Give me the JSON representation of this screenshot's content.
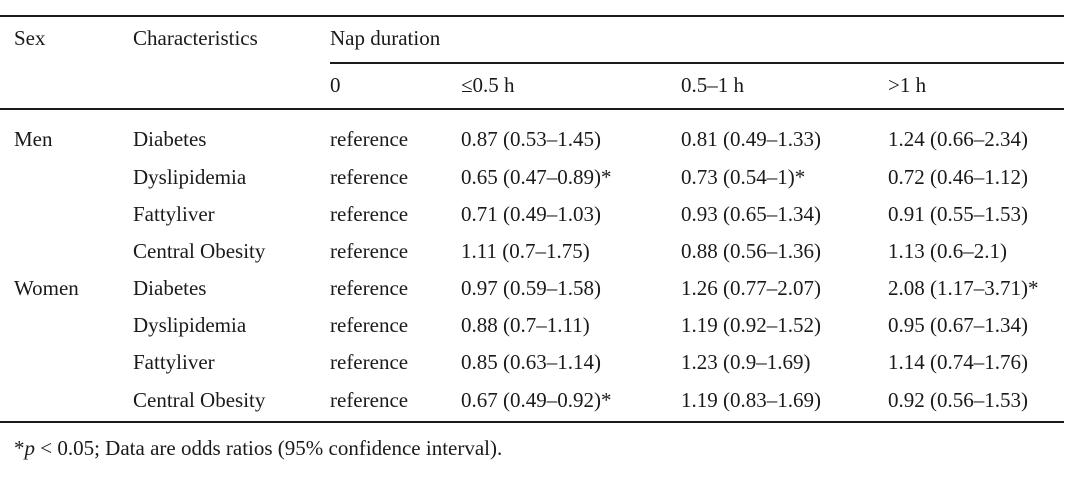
{
  "table": {
    "headers": {
      "sex": "Sex",
      "characteristics": "Characteristics",
      "nap_duration": "Nap duration",
      "sub": [
        "0",
        "≤0.5 h",
        "0.5–1 h",
        ">1 h"
      ]
    },
    "rows": [
      {
        "sex": "Men",
        "characteristic": "Diabetes",
        "cells": [
          "reference",
          "0.87 (0.53–1.45)",
          "0.81 (0.49–1.33)",
          "1.24 (0.66–2.34)"
        ]
      },
      {
        "sex": "",
        "characteristic": "Dyslipidemia",
        "cells": [
          "reference",
          "0.65 (0.47–0.89)*",
          "0.73 (0.54–1)*",
          "0.72 (0.46–1.12)"
        ]
      },
      {
        "sex": "",
        "characteristic": "Fattyliver",
        "cells": [
          "reference",
          "0.71 (0.49–1.03)",
          "0.93 (0.65–1.34)",
          "0.91 (0.55–1.53)"
        ]
      },
      {
        "sex": "",
        "characteristic": "Central Obesity",
        "cells": [
          "reference",
          "1.11 (0.7–1.75)",
          "0.88 (0.56–1.36)",
          "1.13 (0.6–2.1)"
        ]
      },
      {
        "sex": "Women",
        "characteristic": "Diabetes",
        "cells": [
          "reference",
          "0.97 (0.59–1.58)",
          "1.26 (0.77–2.07)",
          "2.08 (1.17–3.71)*"
        ]
      },
      {
        "sex": "",
        "characteristic": "Dyslipidemia",
        "cells": [
          "reference",
          "0.88 (0.7–1.11)",
          "1.19 (0.92–1.52)",
          "0.95 (0.67–1.34)"
        ]
      },
      {
        "sex": "",
        "characteristic": "Fattyliver",
        "cells": [
          "reference",
          "0.85 (0.63–1.14)",
          "1.23 (0.9–1.69)",
          "1.14 (0.74–1.76)"
        ]
      },
      {
        "sex": "",
        "characteristic": "Central Obesity",
        "cells": [
          "reference",
          "0.67 (0.49–0.92)*",
          "1.19 (0.83–1.69)",
          "0.92 (0.56–1.53)"
        ]
      }
    ]
  },
  "footnote": {
    "star": "*",
    "p": "p",
    "rest": " < 0.05; Data are odds ratios (95% confidence interval)."
  }
}
